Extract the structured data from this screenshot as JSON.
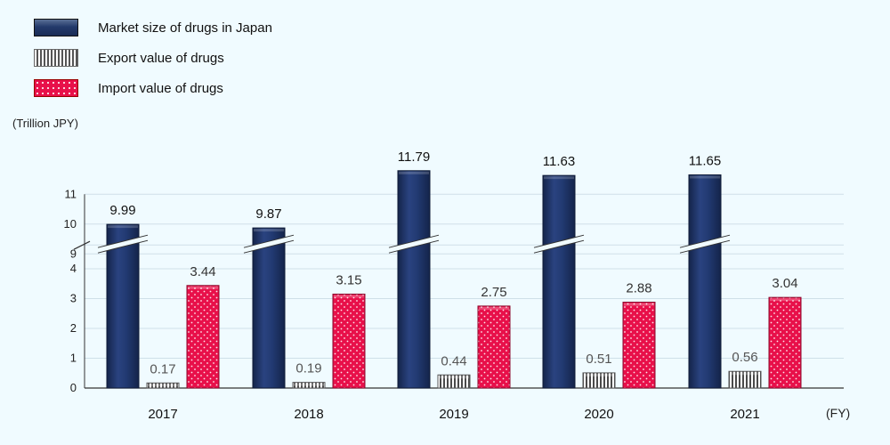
{
  "chart_data": {
    "type": "bar",
    "categories": [
      "2017",
      "2018",
      "2019",
      "2020",
      "2021"
    ],
    "series": [
      {
        "name": "Market size of drugs in Japan",
        "values": [
          9.99,
          9.87,
          11.79,
          11.63,
          11.65
        ],
        "labels": [
          "9.99",
          "9.87",
          "11.79",
          "11.63",
          "11.65"
        ],
        "color": "#1E3366"
      },
      {
        "name": "Export value of drugs",
        "values": [
          0.17,
          0.19,
          0.44,
          0.51,
          0.56
        ],
        "labels": [
          "0.17",
          "0.19",
          "0.44",
          "0.51",
          "0.56"
        ],
        "color": "#888888"
      },
      {
        "name": "Import value of drugs",
        "values": [
          3.44,
          3.15,
          2.75,
          2.88,
          3.04
        ],
        "labels": [
          "3.44",
          "3.15",
          "2.75",
          "2.88",
          "3.04"
        ],
        "color": "#E8104A"
      }
    ],
    "ylabel": "(Trillion  JPY)",
    "xlabel": "(FY)",
    "y_ticks_lower": [
      0,
      1,
      2,
      3,
      4
    ],
    "y_ticks_upper": [
      9,
      10,
      11
    ],
    "axis_break": [
      4.8,
      8.3
    ],
    "legend_position": "top-left",
    "grid": true
  }
}
